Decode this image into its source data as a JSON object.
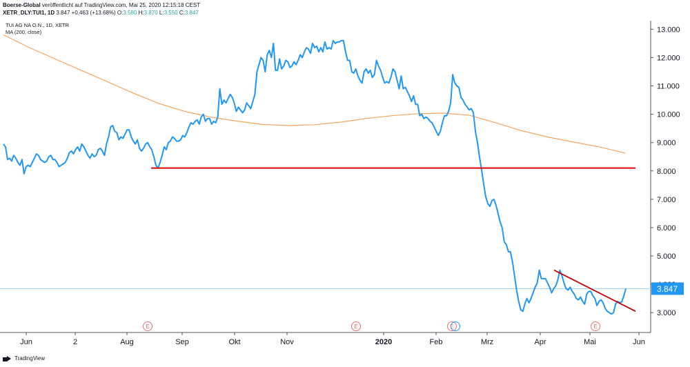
{
  "header": {
    "brand": "Boerse-Global",
    "published": "veröffentlicht auf TradingView.com, Mai 25, 2020 12:15:18 CEST",
    "symbol": "XETR_DLY:TUI1, 1D",
    "last": "3.847",
    "change": "+0.463 (+13.68%)",
    "open_label": "O:",
    "open": "3.580",
    "high_label": "H:",
    "high": "3.870",
    "low_label": "L:",
    "low": "3.550",
    "close_label": "C:",
    "close": "3.847"
  },
  "legend": {
    "instrument": "TUI AG NA O.N., 1D, XETR",
    "indicator": "MA (200, close)"
  },
  "footer": {
    "brand": "TradingView"
  },
  "colors": {
    "price": "#2196f3",
    "ma": "#f7a35c",
    "support": "#e00000",
    "trend": "#c00000",
    "last_price_line": "#9ad3f5",
    "last_price_badge": "#2196f3",
    "earnings": "#e57373"
  },
  "chart_data": {
    "type": "line",
    "title": "TUI AG NA O.N., 1D, XETR",
    "y_ticks": [
      "13.000",
      "12.000",
      "11.000",
      "10.000",
      "9.000",
      "8.000",
      "7.000",
      "6.000",
      "5.000",
      "4.000",
      "3.000"
    ],
    "ylim": [
      2.3,
      13.3
    ],
    "x_ticks": [
      "Jun",
      "2",
      "Aug",
      "Sep",
      "Okt",
      "Nov",
      "2020",
      "Feb",
      "Mrz",
      "Apr",
      "Mai",
      "Jun"
    ],
    "last_value_label": "3.847",
    "last_value": 3.847,
    "series": [
      {
        "name": "TUI AG NA O.N., 1D, XETR",
        "values": [
          8.95,
          8.85,
          8.4,
          8.45,
          8.35,
          8.55,
          8.45,
          8.3,
          8.2,
          8.4,
          7.9,
          8.15,
          8.2,
          8.15,
          8.3,
          8.45,
          8.6,
          8.55,
          8.4,
          8.35,
          8.3,
          8.35,
          8.5,
          8.55,
          8.4,
          8.4,
          8.3,
          8.15,
          8.2,
          8.25,
          8.3,
          8.45,
          8.65,
          8.7,
          8.6,
          8.75,
          8.85,
          8.7,
          8.95,
          8.85,
          8.7,
          8.55,
          8.45,
          8.6,
          8.5,
          8.55,
          8.75,
          8.8,
          8.7,
          8.55,
          8.95,
          9.2,
          9.55,
          9.6,
          9.4,
          9.35,
          9.1,
          9.2,
          9.15,
          9.3,
          9.45,
          9.45,
          9.2,
          9.05,
          8.95,
          9.1,
          8.8,
          8.7,
          8.8,
          8.95,
          9.0,
          8.85,
          8.75,
          8.5,
          8.2,
          8.1,
          8.3,
          8.55,
          8.85,
          8.75,
          9.0,
          9.05,
          9.2,
          9.15,
          9.05,
          9.05,
          9.1,
          9.25,
          9.2,
          9.35,
          9.55,
          9.7,
          9.65,
          9.75,
          9.8,
          9.65,
          9.9,
          10.0,
          9.75,
          9.85,
          9.85,
          9.65,
          9.75,
          9.7,
          9.9,
          10.9,
          10.35,
          10.5,
          10.4,
          10.55,
          10.7,
          10.6,
          10.4,
          10.1,
          10.25,
          10.15,
          10.05,
          10.15,
          10.4,
          10.3,
          10.2,
          10.45,
          10.7,
          11.5,
          11.75,
          12.0,
          11.9,
          11.5,
          12.1,
          12.25,
          12.0,
          12.5,
          11.55,
          11.55,
          11.95,
          11.6,
          11.7,
          11.9,
          11.85,
          11.65,
          11.7,
          11.85,
          11.75,
          11.9,
          12.1,
          12.0,
          12.2,
          12.35,
          12.3,
          12.15,
          12.5,
          12.35,
          12.4,
          12.2,
          12.35,
          12.2,
          12.55,
          12.3,
          12.35,
          12.3,
          12.6,
          12.5,
          12.55,
          12.55,
          12.6,
          12.6,
          12.2,
          11.9,
          11.9,
          11.5,
          11.45,
          11.6,
          11.35,
          11.2,
          11.1,
          11.5,
          11.6,
          11.45,
          11.55,
          11.3,
          11.4,
          11.9,
          11.7,
          11.55,
          11.3,
          11.1,
          11.15,
          11.1,
          11.3,
          11.6,
          11.5,
          11.2,
          10.9,
          11.35,
          10.9,
          10.95,
          10.8,
          10.65,
          10.45,
          10.65,
          10.35,
          10.35,
          9.95,
          10.0,
          9.85,
          9.9,
          9.85,
          9.75,
          9.7,
          9.55,
          9.4,
          9.25,
          9.4,
          9.7,
          9.95,
          9.95,
          10.1,
          10.4,
          11.4,
          11.1,
          11.0,
          10.95,
          10.6,
          10.5,
          10.35,
          10.25,
          10.15,
          10.2,
          10.05,
          9.4,
          9.0,
          8.5,
          8.05,
          7.55,
          7.1,
          6.85,
          6.75,
          6.95,
          7.0,
          6.8,
          6.5,
          6.2,
          6.0,
          5.5,
          5.4,
          5.15,
          5.15,
          4.8,
          4.3,
          3.8,
          3.4,
          3.1,
          3.05,
          3.3,
          3.5,
          3.35,
          3.5,
          3.7,
          3.9,
          4.05,
          4.5,
          4.2,
          4.2,
          4.2,
          4.05,
          3.9,
          3.7,
          3.85,
          3.95,
          4.15,
          4.5,
          4.3,
          4.05,
          3.85,
          3.8,
          3.9,
          3.75,
          3.65,
          3.5,
          3.45,
          3.55,
          3.4,
          3.3,
          3.65,
          3.75,
          3.75,
          3.6,
          3.5,
          3.25,
          3.4,
          3.45,
          3.35,
          3.15,
          3.05,
          3.0,
          2.95,
          3.0,
          3.3,
          3.4,
          3.35,
          3.38,
          3.58,
          3.847
        ]
      },
      {
        "name": "MA (200, close)",
        "values": [
          12.8,
          12.35,
          11.95,
          11.55,
          11.15,
          10.75,
          10.38,
          10.1,
          9.9,
          9.76,
          9.64,
          9.6,
          9.63,
          9.72,
          9.85,
          9.95,
          10.02,
          10.04,
          9.96,
          9.7,
          9.42,
          9.2,
          9.02,
          8.85,
          8.63
        ]
      }
    ],
    "annotations": [
      {
        "type": "support_line",
        "name": "horizontal support",
        "y": 8.1
      },
      {
        "type": "trend_line",
        "name": "downtrend line",
        "y_start": 4.5,
        "y_end": 3.05
      }
    ],
    "earnings_marker_label": "E",
    "earnings_markers": [
      "Aug",
      "Dez",
      "Feb",
      "Mai"
    ]
  }
}
